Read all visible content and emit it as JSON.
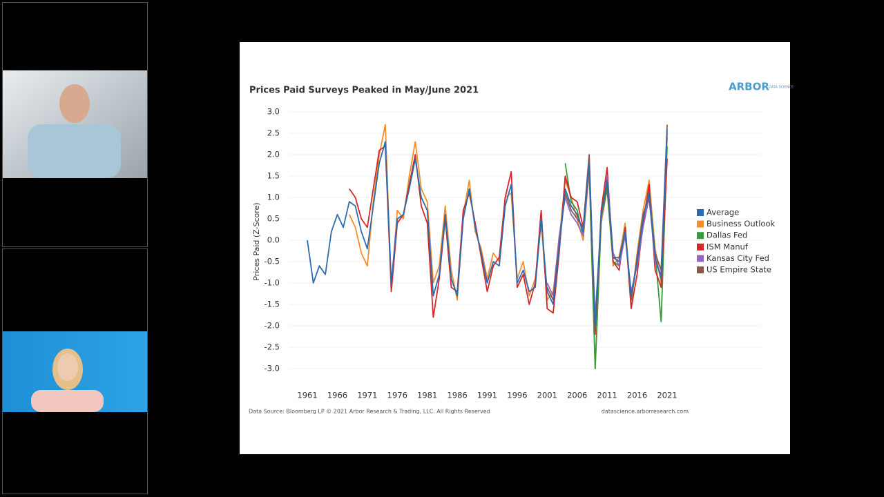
{
  "chart_data": {
    "type": "line",
    "title": "Prices Paid Surveys Peaked in May/June 2021",
    "logo": "ARBOR",
    "logo_sub": "DATA SCIENCE",
    "y_label": "Prices Paid (Z-Score)",
    "source_note": "Data Source: Bloomberg LP © 2021 Arbor Research & Trading, LLC. All Rights Reserved",
    "website": "datascience.arborresearch.com",
    "x": [
      1961,
      1962,
      1963,
      1964,
      1965,
      1966,
      1967,
      1968,
      1969,
      1970,
      1971,
      1972,
      1973,
      1974,
      1975,
      1976,
      1977,
      1978,
      1979,
      1980,
      1981,
      1982,
      1983,
      1984,
      1985,
      1986,
      1987,
      1988,
      1989,
      1990,
      1991,
      1992,
      1993,
      1994,
      1995,
      1996,
      1997,
      1998,
      1999,
      2000,
      2001,
      2002,
      2003,
      2004,
      2005,
      2006,
      2007,
      2008,
      2009,
      2010,
      2011,
      2012,
      2013,
      2014,
      2015,
      2016,
      2017,
      2018,
      2019,
      2020,
      2021
    ],
    "xlim": [
      1958,
      2024
    ],
    "xticks": [
      1961,
      1966,
      1971,
      1976,
      1981,
      1986,
      1991,
      1996,
      2001,
      2006,
      2011,
      2016,
      2021
    ],
    "ylim": [
      -3.2,
      3.2
    ],
    "yticks": [
      {
        "value": -3,
        "label": "-3.0"
      },
      {
        "value": -2.5,
        "label": "-2.5"
      },
      {
        "value": -2,
        "label": "-2.0"
      },
      {
        "value": -1.5,
        "label": "-1.5"
      },
      {
        "value": -1,
        "label": "-1.0"
      },
      {
        "value": -0.5,
        "label": "-0.5"
      },
      {
        "value": 0,
        "label": "0.0"
      },
      {
        "value": 0.5,
        "label": "0.5"
      },
      {
        "value": 1,
        "label": "1.0"
      },
      {
        "value": 1.5,
        "label": "1.5"
      },
      {
        "value": 2,
        "label": "2.0"
      },
      {
        "value": 2.5,
        "label": "2.5"
      },
      {
        "value": 3,
        "label": "3.0"
      }
    ],
    "grid": true,
    "legend": "right",
    "series": [
      {
        "name": "Average",
        "color": "#2b6cb0",
        "values": [
          0.0,
          -1.0,
          -0.6,
          -0.8,
          0.2,
          0.6,
          0.3,
          0.9,
          0.8,
          0.2,
          -0.2,
          0.8,
          1.8,
          2.3,
          -1.0,
          0.5,
          0.6,
          1.2,
          1.9,
          1.0,
          0.7,
          -1.3,
          -0.8,
          0.6,
          -0.9,
          -1.3,
          0.5,
          1.2,
          0.3,
          -0.3,
          -1.0,
          -0.5,
          -0.6,
          0.8,
          1.3,
          -1.0,
          -0.7,
          -1.2,
          -1.1,
          0.5,
          -1.2,
          -1.5,
          -0.2,
          1.2,
          0.8,
          0.6,
          0.2,
          1.8,
          -2.0,
          0.6,
          1.4,
          -0.4,
          -0.5,
          0.2,
          -1.3,
          -0.5,
          0.5,
          1.1,
          -0.4,
          -0.9,
          2.6
        ]
      },
      {
        "name": "Business Outlook",
        "color": "#f28e2b",
        "values": [
          null,
          null,
          null,
          null,
          null,
          null,
          null,
          0.6,
          0.3,
          -0.3,
          -0.6,
          0.9,
          2.0,
          2.7,
          -1.1,
          0.7,
          0.5,
          1.5,
          2.3,
          1.2,
          0.9,
          -1.0,
          -0.6,
          0.8,
          -0.7,
          -1.4,
          0.6,
          1.4,
          0.2,
          -0.2,
          -0.9,
          -0.3,
          -0.5,
          1.0,
          1.1,
          -0.9,
          -0.5,
          -1.3,
          -0.9,
          0.4,
          -1.4,
          -1.2,
          0.0,
          1.4,
          1.0,
          0.5,
          0.0,
          1.6,
          -3.0,
          0.4,
          1.2,
          -0.6,
          -0.4,
          0.4,
          -1.5,
          -0.3,
          0.7,
          1.4,
          -0.2,
          -1.0,
          2.4
        ]
      },
      {
        "name": "Dallas Fed",
        "color": "#3a9a3a",
        "values": [
          null,
          null,
          null,
          null,
          null,
          null,
          null,
          null,
          null,
          null,
          null,
          null,
          null,
          null,
          null,
          null,
          null,
          null,
          null,
          null,
          null,
          null,
          null,
          null,
          null,
          null,
          null,
          null,
          null,
          null,
          null,
          null,
          null,
          null,
          null,
          null,
          null,
          null,
          null,
          null,
          null,
          null,
          null,
          1.8,
          0.9,
          0.7,
          0.1,
          1.7,
          -3.0,
          0.5,
          1.2,
          -0.5,
          -0.6,
          0.3,
          -1.4,
          -0.5,
          0.5,
          1.2,
          -0.3,
          -1.9,
          2.2
        ]
      },
      {
        "name": "ISM Manuf",
        "color": "#d62728",
        "values": [
          null,
          null,
          null,
          null,
          null,
          null,
          null,
          1.2,
          1.0,
          0.5,
          0.3,
          1.2,
          2.1,
          2.2,
          -1.2,
          0.4,
          0.6,
          1.3,
          2.0,
          0.8,
          0.4,
          -1.8,
          -0.9,
          0.5,
          -1.1,
          -1.2,
          0.7,
          1.1,
          0.4,
          -0.4,
          -1.2,
          -0.6,
          -0.4,
          1.0,
          1.6,
          -1.1,
          -0.8,
          -1.5,
          -1.0,
          0.7,
          -1.6,
          -1.7,
          -0.3,
          1.5,
          1.0,
          0.9,
          0.3,
          1.9,
          -2.2,
          0.7,
          1.7,
          -0.5,
          -0.7,
          0.3,
          -1.6,
          -0.8,
          0.4,
          1.3,
          -0.7,
          -1.1,
          1.9
        ]
      },
      {
        "name": "Kansas City Fed",
        "color": "#9467bd",
        "values": [
          null,
          null,
          null,
          null,
          null,
          null,
          null,
          null,
          null,
          null,
          null,
          null,
          null,
          null,
          null,
          null,
          null,
          null,
          null,
          null,
          null,
          null,
          null,
          null,
          null,
          null,
          null,
          null,
          null,
          null,
          null,
          null,
          null,
          null,
          null,
          null,
          null,
          null,
          null,
          null,
          -1.0,
          -1.3,
          0.1,
          1.0,
          0.6,
          0.4,
          0.1,
          1.7,
          -1.8,
          0.5,
          1.5,
          -0.3,
          -0.6,
          0.1,
          -1.2,
          -0.6,
          0.3,
          1.0,
          -0.5,
          -0.8,
          2.5
        ]
      },
      {
        "name": "US Empire State",
        "color": "#8c564b",
        "values": [
          null,
          null,
          null,
          null,
          null,
          null,
          null,
          null,
          null,
          null,
          null,
          null,
          null,
          null,
          null,
          null,
          null,
          null,
          null,
          null,
          null,
          null,
          null,
          null,
          null,
          null,
          null,
          null,
          null,
          null,
          null,
          null,
          null,
          null,
          null,
          null,
          null,
          null,
          null,
          null,
          -1.1,
          -1.4,
          -0.1,
          1.1,
          0.7,
          0.5,
          0.3,
          2.0,
          -2.1,
          0.6,
          1.3,
          -0.4,
          -0.4,
          0.2,
          -1.4,
          -0.4,
          0.6,
          1.0,
          -0.3,
          -0.7,
          2.7
        ]
      }
    ]
  }
}
